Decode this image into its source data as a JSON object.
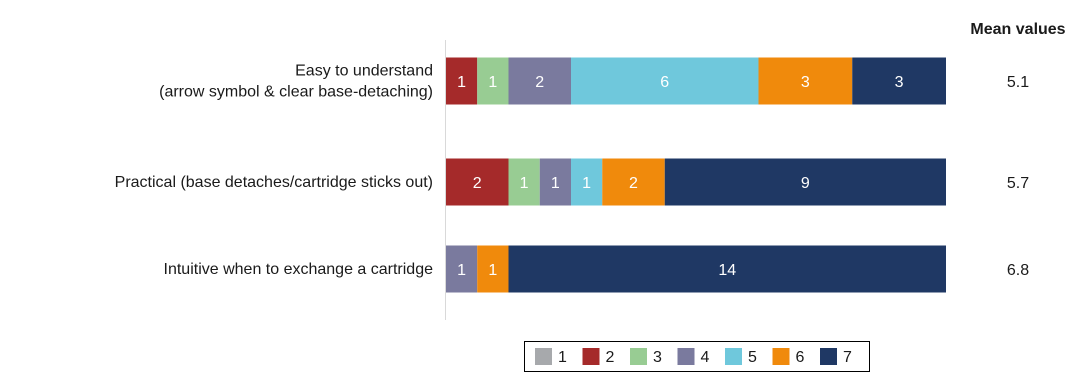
{
  "chart_data": {
    "type": "bar",
    "orientation": "horizontal",
    "stacked": true,
    "categories": [
      [
        "Easy to understand",
        "(arrow symbol & clear base-detaching)"
      ],
      [
        "Practical (base detaches/cartridge sticks out)"
      ],
      [
        "Intuitive when to exchange a cartridge"
      ]
    ],
    "series": [
      {
        "name": "1",
        "color": "#a7a9ac",
        "values": [
          0,
          0,
          0
        ]
      },
      {
        "name": "2",
        "color": "#a52a2a",
        "values": [
          1,
          2,
          0
        ]
      },
      {
        "name": "3",
        "color": "#98cc93",
        "values": [
          1,
          1,
          0
        ]
      },
      {
        "name": "4",
        "color": "#7a7a9e",
        "values": [
          2,
          1,
          1
        ]
      },
      {
        "name": "5",
        "color": "#6fc8dc",
        "values": [
          6,
          1,
          0
        ]
      },
      {
        "name": "6",
        "color": "#f08a0c",
        "values": [
          3,
          2,
          1
        ]
      },
      {
        "name": "7",
        "color": "#1f3864",
        "values": [
          3,
          9,
          14
        ]
      }
    ],
    "mean_title": "Mean values",
    "mean_values": [
      "5.1",
      "5.7",
      "6.8"
    ],
    "xlim": [
      0,
      16
    ],
    "legend_position": "bottom"
  }
}
